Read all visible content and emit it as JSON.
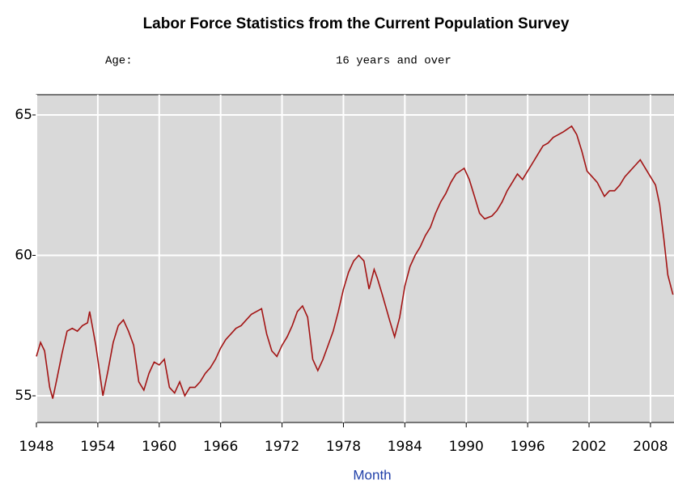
{
  "chart_data": {
    "type": "line",
    "title": "Labor Force Statistics from the Current Population Survey",
    "age_label": "Age:",
    "age_value": "16 years and over",
    "x_label": "Month",
    "xlim": [
      1948,
      2010.3
    ],
    "ylim": [
      54.05,
      65.72
    ],
    "xticks": [
      1948,
      1954,
      1960,
      1966,
      1972,
      1978,
      1984,
      1990,
      1996,
      2002,
      2008
    ],
    "yticks": [
      55,
      60,
      65
    ],
    "grid": true,
    "x": [
      1948,
      1948.4,
      1948.8,
      1949.3,
      1949.6,
      1950,
      1950.5,
      1951,
      1951.5,
      1952,
      1952.5,
      1953,
      1953.2,
      1953.8,
      1954.5,
      1955,
      1955.5,
      1956,
      1956.5,
      1957,
      1957.5,
      1958,
      1958.5,
      1959,
      1959.5,
      1960,
      1960.5,
      1961,
      1961.5,
      1962,
      1962.5,
      1963,
      1963.5,
      1964,
      1964.5,
      1965,
      1965.5,
      1966,
      1966.5,
      1967,
      1967.5,
      1968,
      1968.5,
      1969,
      1969.5,
      1970,
      1970.5,
      1971,
      1971.5,
      1972,
      1972.5,
      1973,
      1973.5,
      1974,
      1974.5,
      1975,
      1975.5,
      1976,
      1976.5,
      1977,
      1977.5,
      1978,
      1978.5,
      1979,
      1979.5,
      1980,
      1980.5,
      1981,
      1981.3,
      1981.8,
      1982.5,
      1983,
      1983.5,
      1984,
      1984.5,
      1985,
      1985.5,
      1986,
      1986.5,
      1987,
      1987.5,
      1988,
      1988.5,
      1989,
      1989.8,
      1990.3,
      1990.8,
      1991.3,
      1991.8,
      1992.5,
      1993,
      1993.5,
      1994,
      1994.5,
      1995,
      1995.5,
      1996,
      1996.5,
      1997,
      1997.5,
      1998,
      1998.5,
      1999,
      1999.5,
      2000.3,
      2000.8,
      2001.3,
      2001.8,
      2002.3,
      2002.8,
      2003.5,
      2004,
      2004.5,
      2005,
      2005.5,
      2006,
      2006.5,
      2007,
      2007.5,
      2008,
      2008.5,
      2008.9,
      2009.3,
      2009.7,
      2010.2
    ],
    "series": [
      {
        "name": "16 years and over",
        "color": "#a31414",
        "values": [
          56.4,
          56.9,
          56.6,
          55.3,
          54.9,
          55.6,
          56.5,
          57.3,
          57.4,
          57.3,
          57.5,
          57.6,
          58.0,
          56.8,
          55.0,
          55.9,
          56.9,
          57.5,
          57.7,
          57.3,
          56.8,
          55.5,
          55.2,
          55.8,
          56.2,
          56.1,
          56.3,
          55.3,
          55.1,
          55.5,
          55.0,
          55.3,
          55.3,
          55.5,
          55.8,
          56.0,
          56.3,
          56.7,
          57.0,
          57.2,
          57.4,
          57.5,
          57.7,
          57.9,
          58.0,
          58.1,
          57.2,
          56.6,
          56.4,
          56.8,
          57.1,
          57.5,
          58.0,
          58.2,
          57.8,
          56.3,
          55.9,
          56.3,
          56.8,
          57.3,
          58.0,
          58.8,
          59.4,
          59.8,
          60.0,
          59.8,
          58.8,
          59.5,
          59.2,
          58.6,
          57.7,
          57.1,
          57.8,
          58.9,
          59.6,
          60.0,
          60.3,
          60.7,
          61.0,
          61.5,
          61.9,
          62.2,
          62.6,
          62.9,
          63.1,
          62.7,
          62.1,
          61.5,
          61.3,
          61.4,
          61.6,
          61.9,
          62.3,
          62.6,
          62.9,
          62.7,
          63.0,
          63.3,
          63.6,
          63.9,
          64.0,
          64.2,
          64.3,
          64.4,
          64.6,
          64.3,
          63.7,
          63.0,
          62.8,
          62.6,
          62.1,
          62.3,
          62.3,
          62.5,
          62.8,
          63.0,
          63.2,
          63.4,
          63.1,
          62.8,
          62.5,
          61.8,
          60.6,
          59.3,
          58.6
        ]
      }
    ]
  }
}
